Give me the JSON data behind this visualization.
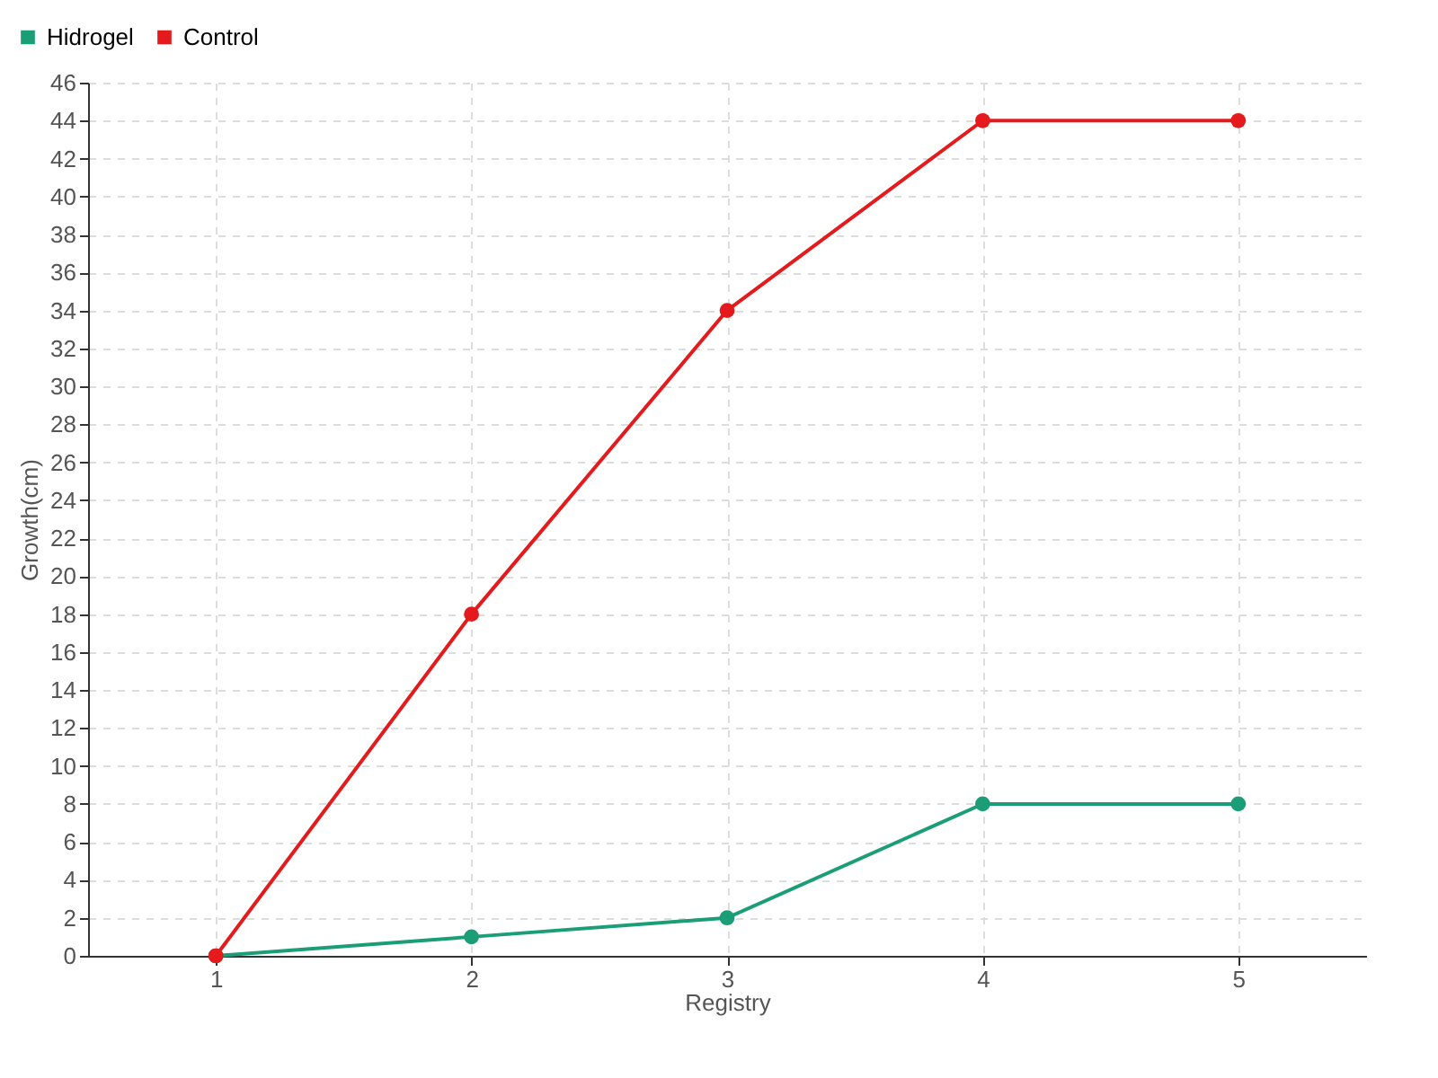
{
  "chart_data": {
    "type": "line",
    "xlabel": "Registry",
    "ylabel": "Growth(cm)",
    "x": [
      1,
      2,
      3,
      4,
      5
    ],
    "xlim": [
      0.5,
      5.5
    ],
    "xticks": [
      1,
      2,
      3,
      4,
      5
    ],
    "ylim": [
      0,
      46
    ],
    "yticks": [
      0,
      2,
      4,
      6,
      8,
      10,
      12,
      14,
      16,
      18,
      20,
      22,
      24,
      26,
      28,
      30,
      32,
      34,
      36,
      38,
      40,
      42,
      44,
      46
    ],
    "grid": true,
    "legend": "top left",
    "marker": "circle",
    "line_style": "solid",
    "series": [
      {
        "name": "Hidrogel",
        "color": "#1b9e77",
        "values": [
          0,
          1,
          2,
          8,
          8
        ]
      },
      {
        "name": "Control",
        "color": "#e41a1c",
        "values": [
          0,
          18,
          34,
          44,
          44
        ]
      }
    ]
  }
}
